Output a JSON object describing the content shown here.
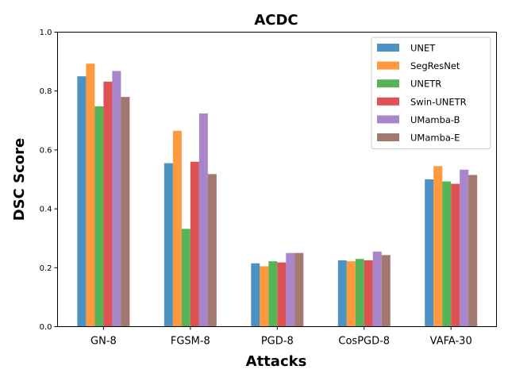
{
  "chart_data": {
    "type": "bar",
    "title": "ACDC",
    "xlabel": "Attacks",
    "ylabel": "DSC Score",
    "categories": [
      "GN-8",
      "FGSM-8",
      "PGD-8",
      "CosPGD-8",
      "VAFA-30"
    ],
    "ylim": [
      0,
      1.0
    ],
    "yticks": [
      "0.0",
      "0.2",
      "0.4",
      "0.6",
      "0.8",
      "1.0"
    ],
    "grid": false,
    "legend_position": "top-right",
    "series": [
      {
        "name": "UNET",
        "color": "#1f77b4",
        "values": [
          0.85,
          0.555,
          0.215,
          0.225,
          0.5
        ]
      },
      {
        "name": "SegResNet",
        "color": "#ff7f0e",
        "values": [
          0.893,
          0.665,
          0.205,
          0.222,
          0.545
        ]
      },
      {
        "name": "UNETR",
        "color": "#2ca02c",
        "values": [
          0.748,
          0.332,
          0.222,
          0.23,
          0.493
        ]
      },
      {
        "name": "Swin-UNETR",
        "color": "#d62728",
        "values": [
          0.832,
          0.56,
          0.218,
          0.225,
          0.485
        ]
      },
      {
        "name": "UMamba-B",
        "color": "#9467bd",
        "values": [
          0.868,
          0.724,
          0.25,
          0.255,
          0.533
        ]
      },
      {
        "name": "UMamba-E",
        "color": "#8c564b",
        "values": [
          0.78,
          0.518,
          0.25,
          0.243,
          0.515
        ]
      }
    ]
  }
}
